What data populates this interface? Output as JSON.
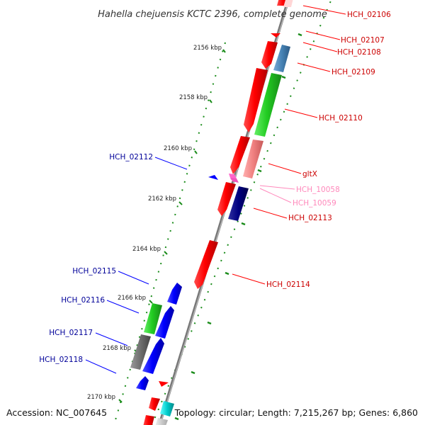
{
  "title": "Hahella chejuensis KCTC 2396, complete genome",
  "footer": {
    "accession": "Accession: NC_007645",
    "summary": "Topology: circular; Length: 7,215,267 bp; Genes: 6,860"
  },
  "scale_ticks": [
    "2156 kbp",
    "2158 kbp",
    "2160 kbp",
    "2162 kbp",
    "2164 kbp",
    "2166 kbp",
    "2168 kbp",
    "2170 kbp"
  ],
  "gene_labels": {
    "HCH_02106": "HCH_02106",
    "HCH_02107": "HCH_02107",
    "HCH_02108": "HCH_02108",
    "HCH_02109": "HCH_02109",
    "HCH_02110": "HCH_02110",
    "gltX": "gltX",
    "HCH_10058": "HCH_10058",
    "HCH_10059": "HCH_10059",
    "HCH_02113": "HCH_02113",
    "HCH_02114": "HCH_02114",
    "HCH_02112": "HCH_02112",
    "HCH_02115": "HCH_02115",
    "HCH_02116": "HCH_02116",
    "HCH_02117": "HCH_02117",
    "HCH_02118": "HCH_02118"
  },
  "colors": {
    "forward_gene": "#ff0000",
    "reverse_gene": "#0000ff",
    "forward_label": "#cc0000",
    "reverse_label": "#000099",
    "rna_label": "#ff88bb",
    "backbone": "#888888",
    "dotted_track": "#1a8c1a"
  }
}
